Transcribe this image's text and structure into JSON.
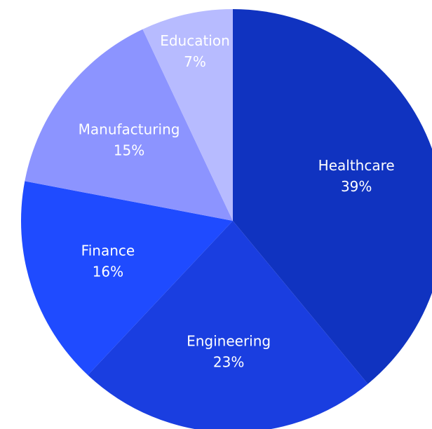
{
  "chart_data": {
    "type": "pie",
    "title": "",
    "slices": [
      {
        "label": "Healthcare",
        "percent_label": "39%",
        "value": 39,
        "color": "#1033C0"
      },
      {
        "label": "Engineering",
        "percent_label": "23%",
        "value": 23,
        "color": "#1A3EE0"
      },
      {
        "label": "Finance",
        "percent_label": "16%",
        "value": 16,
        "color": "#1F4BFF"
      },
      {
        "label": "Manufacturing",
        "percent_label": "15%",
        "value": 15,
        "color": "#8C94FF"
      },
      {
        "label": "Education",
        "percent_label": "7%",
        "value": 7,
        "color": "#B7BBFF"
      }
    ],
    "start_angle_deg": 0,
    "direction": "clockwise",
    "legend": "none"
  }
}
